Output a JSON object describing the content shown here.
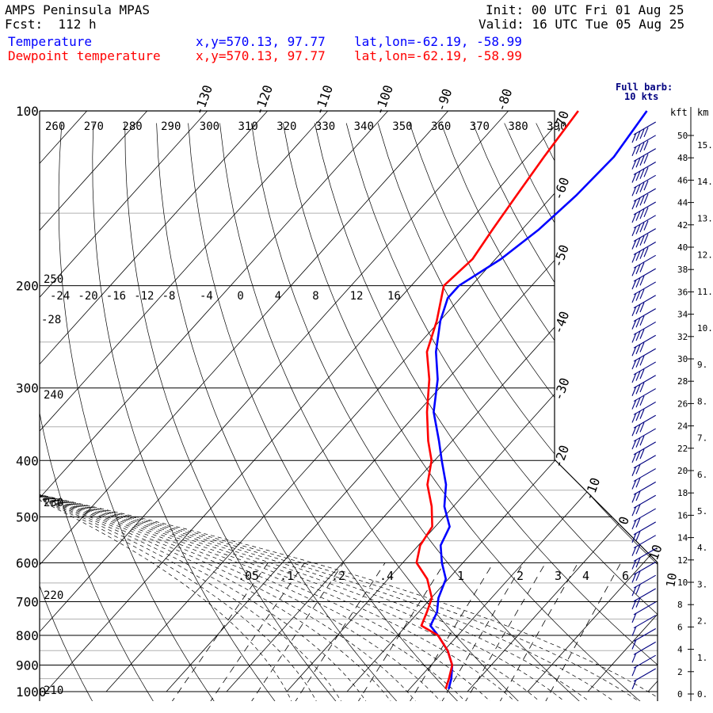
{
  "header": {
    "model": "AMPS Peninsula MPAS",
    "forecast": "Fcst:  112 h",
    "init": "Init: 00 UTC Fri 01 Aug 25",
    "valid": "Valid: 16 UTC Tue 05 Aug 25"
  },
  "series_info": [
    {
      "name": "Temperature",
      "xy": "x,y=570.13, 97.77",
      "latlon": "lat,lon=-62.19, -58.99",
      "color": "#0000ff"
    },
    {
      "name": "Dewpoint temperature",
      "xy": "x,y=570.13, 97.77",
      "latlon": "lat,lon=-62.19, -58.99",
      "color": "#ff0000"
    }
  ],
  "wind_legend": {
    "line1": "Full barb:",
    "line2": "10 kts"
  },
  "height_units": {
    "kft": "kft",
    "km": "km"
  },
  "chart_data": {
    "type": "line",
    "subtype": "skew-T log-p",
    "y_axis": {
      "label": "pressure (hPa)",
      "scale": "log",
      "ticks": [
        100,
        200,
        300,
        400,
        500,
        600,
        700,
        800,
        900,
        1000
      ],
      "ylim": [
        1000,
        100
      ]
    },
    "isotherm_labels": [
      "-130",
      "-120",
      "-110",
      "-100",
      "-90",
      "-80",
      "-70",
      "-60",
      "-50",
      "-40",
      "-30",
      "-20",
      "-10",
      "0",
      "10"
    ],
    "theta_labels": [
      "260",
      "270",
      "280",
      "290",
      "300",
      "310",
      "320",
      "330",
      "340",
      "350",
      "360",
      "370",
      "380",
      "390"
    ],
    "theta_labels_lower": [
      "250",
      "240",
      "230",
      "220",
      "210"
    ],
    "theta_e_labels": [
      "-24",
      "-20",
      "-16",
      "-12",
      "-8",
      "-4",
      "0",
      "4",
      "8",
      "12",
      "16"
    ],
    "theta_e_label_left": "-28",
    "mixing_ratio_labels": [
      ".05",
      ".1",
      ".2",
      ".4",
      "1",
      "2",
      "3",
      "4",
      "6",
      "10"
    ],
    "series": [
      {
        "name": "Temperature",
        "color": "#0000ff",
        "points": [
          {
            "p": 990,
            "t": -3.5
          },
          {
            "p": 950,
            "t": -4.6
          },
          {
            "p": 900,
            "t": -6.5
          },
          {
            "p": 850,
            "t": -9.4
          },
          {
            "p": 800,
            "t": -13.3
          },
          {
            "p": 770,
            "t": -16.0
          },
          {
            "p": 730,
            "t": -16.9
          },
          {
            "p": 690,
            "t": -18.8
          },
          {
            "p": 640,
            "t": -20.4
          },
          {
            "p": 600,
            "t": -23.5
          },
          {
            "p": 560,
            "t": -26.3
          },
          {
            "p": 520,
            "t": -27.6
          },
          {
            "p": 480,
            "t": -31.5
          },
          {
            "p": 440,
            "t": -34.5
          },
          {
            "p": 400,
            "t": -38.8
          },
          {
            "p": 370,
            "t": -42.2
          },
          {
            "p": 330,
            "t": -47.4
          },
          {
            "p": 290,
            "t": -51.6
          },
          {
            "p": 260,
            "t": -56.0
          },
          {
            "p": 230,
            "t": -59.9
          },
          {
            "p": 210,
            "t": -62.1
          },
          {
            "p": 200,
            "t": -62.1
          },
          {
            "p": 180,
            "t": -59.1
          },
          {
            "p": 160,
            "t": -57.2
          },
          {
            "p": 140,
            "t": -56.1
          },
          {
            "p": 120,
            "t": -55.6
          },
          {
            "p": 100,
            "t": -57.0
          }
        ]
      },
      {
        "name": "Dewpoint temperature",
        "color": "#ff0000",
        "points": [
          {
            "p": 990,
            "t": -4.0
          },
          {
            "p": 950,
            "t": -5.0
          },
          {
            "p": 900,
            "t": -6.5
          },
          {
            "p": 850,
            "t": -9.4
          },
          {
            "p": 800,
            "t": -13.3
          },
          {
            "p": 770,
            "t": -17.5
          },
          {
            "p": 730,
            "t": -18.6
          },
          {
            "p": 690,
            "t": -19.9
          },
          {
            "p": 640,
            "t": -23.5
          },
          {
            "p": 600,
            "t": -27.7
          },
          {
            "p": 560,
            "t": -29.7
          },
          {
            "p": 520,
            "t": -30.5
          },
          {
            "p": 480,
            "t": -33.6
          },
          {
            "p": 440,
            "t": -37.6
          },
          {
            "p": 400,
            "t": -40.5
          },
          {
            "p": 370,
            "t": -44.0
          },
          {
            "p": 330,
            "t": -48.5
          },
          {
            "p": 290,
            "t": -53.0
          },
          {
            "p": 260,
            "t": -57.5
          },
          {
            "p": 230,
            "t": -60.5
          },
          {
            "p": 200,
            "t": -64.6
          },
          {
            "p": 180,
            "t": -63.8
          },
          {
            "p": 160,
            "t": -64.9
          },
          {
            "p": 140,
            "t": -66.0
          },
          {
            "p": 120,
            "t": -67.2
          },
          {
            "p": 100,
            "t": -68.4
          }
        ]
      }
    ],
    "height_scale": {
      "kft_labels": [
        "50",
        "48",
        "46",
        "44",
        "42",
        "40",
        "38",
        "36",
        "34",
        "32",
        "30",
        "28",
        "26",
        "24",
        "22",
        "20",
        "18",
        "16",
        "14",
        "12",
        "10",
        "8",
        "6",
        "4",
        "2",
        "0"
      ],
      "km_labels": [
        "15.",
        "14.",
        "13.",
        "12.",
        "11.",
        "10.",
        "9.",
        "8.",
        "7.",
        "6.",
        "5.",
        "4.",
        "3.",
        "2.",
        "1.",
        "0."
      ]
    },
    "wind_barbs": {
      "levels": 42,
      "direction": "westerly",
      "color": "#000080"
    },
    "grid": true
  }
}
